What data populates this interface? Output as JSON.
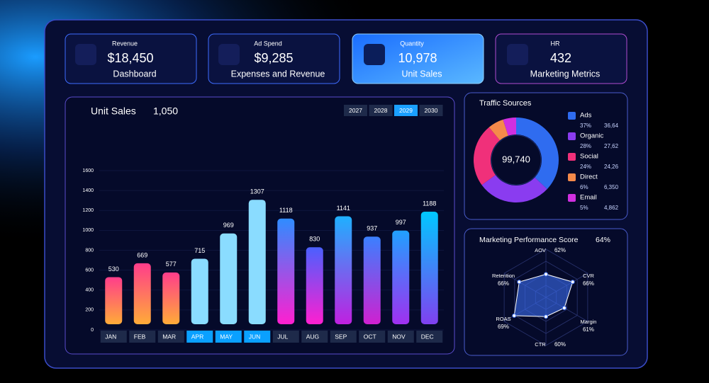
{
  "cards": [
    {
      "label": "Revenue",
      "value": "$18,450",
      "caption": "Dashboard"
    },
    {
      "label": "Ad Spend",
      "value": "$9,285",
      "caption": "Expenses and Revenue"
    },
    {
      "label": "Quantity",
      "value": "10,978",
      "caption": "Unit Sales"
    },
    {
      "label": "HR",
      "value": "432",
      "caption": "Marketing Metrics"
    }
  ],
  "unit_sales": {
    "type": "bar",
    "title": "Unit Sales",
    "total": "1,050",
    "years": [
      "2027",
      "2028",
      "2029",
      "2030"
    ],
    "selected_year": 2,
    "categories": [
      "JAN",
      "FEB",
      "MAR",
      "APR",
      "MAY",
      "JUN",
      "JUL",
      "AUG",
      "SEP",
      "OCT",
      "NOV",
      "DEC"
    ],
    "highlighted": [
      3,
      4,
      5
    ],
    "values": [
      530,
      669,
      577,
      715,
      969,
      1307,
      1118,
      830,
      1141,
      937,
      997,
      1188
    ],
    "colors": [
      [
        "#ff3d8b",
        "#ffab38"
      ],
      [
        "#ff3d8b",
        "#ffab38"
      ],
      [
        "#ff3d8b",
        "#ffab38"
      ],
      [
        "#8adcff",
        "#8adcff"
      ],
      [
        "#8adcff",
        "#8adcff"
      ],
      [
        "#8adcff",
        "#8adcff"
      ],
      [
        "#2f8cff",
        "#ff1fd0"
      ],
      [
        "#4a60ff",
        "#ff1fd0"
      ],
      [
        "#1fb0ff",
        "#c020e0"
      ],
      [
        "#3a80ff",
        "#d020d0"
      ],
      [
        "#20a0ff",
        "#a030f0"
      ],
      [
        "#00c8ff",
        "#8040f0"
      ]
    ],
    "ylim": [
      0,
      1600
    ],
    "yticks": [
      0,
      200,
      400,
      600,
      800,
      1000,
      1200,
      1400,
      1600
    ],
    "grid": true
  },
  "traffic": {
    "type": "pie",
    "title": "Traffic Sources",
    "center_label": "99,740",
    "series": [
      {
        "name": "Ads",
        "color": "#2f6cf0",
        "value": 37,
        "value_label": "37%",
        "count": "36,64"
      },
      {
        "name": "Organic",
        "color": "#8a3cf0",
        "value": 28,
        "value_label": "28%",
        "count": "27,62"
      },
      {
        "name": "Social",
        "color": "#f0307a",
        "value": 24,
        "value_label": "24%",
        "count": "24,26"
      },
      {
        "name": "Direct",
        "color": "#f58a4a",
        "value": 6,
        "value_label": "6%",
        "count": "6,350"
      },
      {
        "name": "Email",
        "color": "#d030e0",
        "value": 5,
        "value_label": "5%",
        "count": "4,862"
      }
    ]
  },
  "performance": {
    "type": "radar",
    "title": "Marketing Performance Score",
    "score": "64%",
    "axes": [
      "AOV",
      "CVR",
      "Margin",
      "CTR",
      "ROAS",
      "Retention"
    ],
    "values": [
      62,
      66,
      61,
      60,
      69,
      66
    ],
    "value_labels": [
      "62%",
      "66%",
      "61%",
      "60%",
      "69%",
      "66%"
    ],
    "rlim": [
      50,
      75
    ]
  }
}
